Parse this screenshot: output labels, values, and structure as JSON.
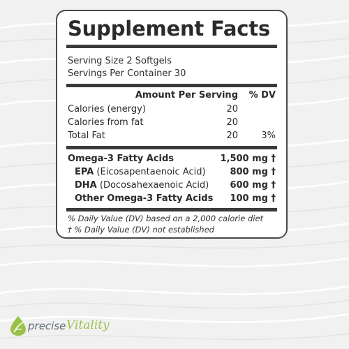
{
  "title": "Supplement Facts",
  "serving_size": "Serving Size 2 Softgels",
  "servings_per_container": "Servings Per Container 30",
  "header": {
    "amount": "Amount Per Serving",
    "dv": "% DV"
  },
  "rows": [
    {
      "label": "Calories (energy)",
      "amount": "20",
      "dv": ""
    },
    {
      "label": "Calories from fat",
      "amount": "20",
      "dv": ""
    },
    {
      "label": "Total Fat",
      "amount": "20",
      "dv": "3%"
    }
  ],
  "omega": {
    "label": "Omega-3 Fatty Acids",
    "amount": "1,500 mg †"
  },
  "sub_rows": [
    {
      "abbr": "EPA",
      "name": "(Eicosapentaenoic Acid)",
      "amount": "800 mg †"
    },
    {
      "abbr": "DHA",
      "name": "(Docosahexaenoic Acid)",
      "amount": "600 mg †"
    },
    {
      "abbr": "Other Omega-3 Fatty Acids",
      "name": "",
      "amount": "100 mg †"
    }
  ],
  "footnotes": [
    "% Daily Value (DV) based on a 2,000 calorie diet",
    "† % Daily Value (DV) not established"
  ],
  "brand": {
    "part1": "precise",
    "part2": "Vitality"
  },
  "colors": {
    "brand_green": "#9ac24a",
    "brand_gray": "#5d6b71",
    "border": "#4a4a4a"
  }
}
